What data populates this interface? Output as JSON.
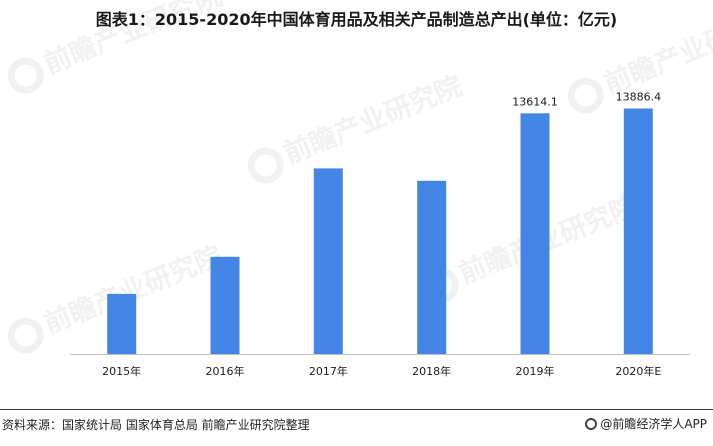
{
  "title": "图表1：2015-2020年中国体育用品及相关产品制造总产出(单位：亿元)",
  "watermark_text": "前瞻产业研究院",
  "source": "资料来源：国家统计局 国家体育总局 前瞻产业研究院整理",
  "brand": "@前瞻经济学人APP",
  "colors": {
    "bar": "#4285e4",
    "axis": "#bfbfbf",
    "text": "#1a1a1a"
  },
  "chart_data": {
    "type": "bar",
    "categories": [
      "2015年",
      "2016年",
      "2017年",
      "2018年",
      "2019年",
      "2020年E"
    ],
    "values": [
      3400,
      5500,
      10500,
      9800,
      13614.1,
      13886.4
    ],
    "data_labels": [
      "",
      "",
      "",
      "",
      "13614.1",
      "13886.4"
    ],
    "ylim": [
      0,
      15500
    ],
    "grid": false,
    "legend": "none"
  }
}
